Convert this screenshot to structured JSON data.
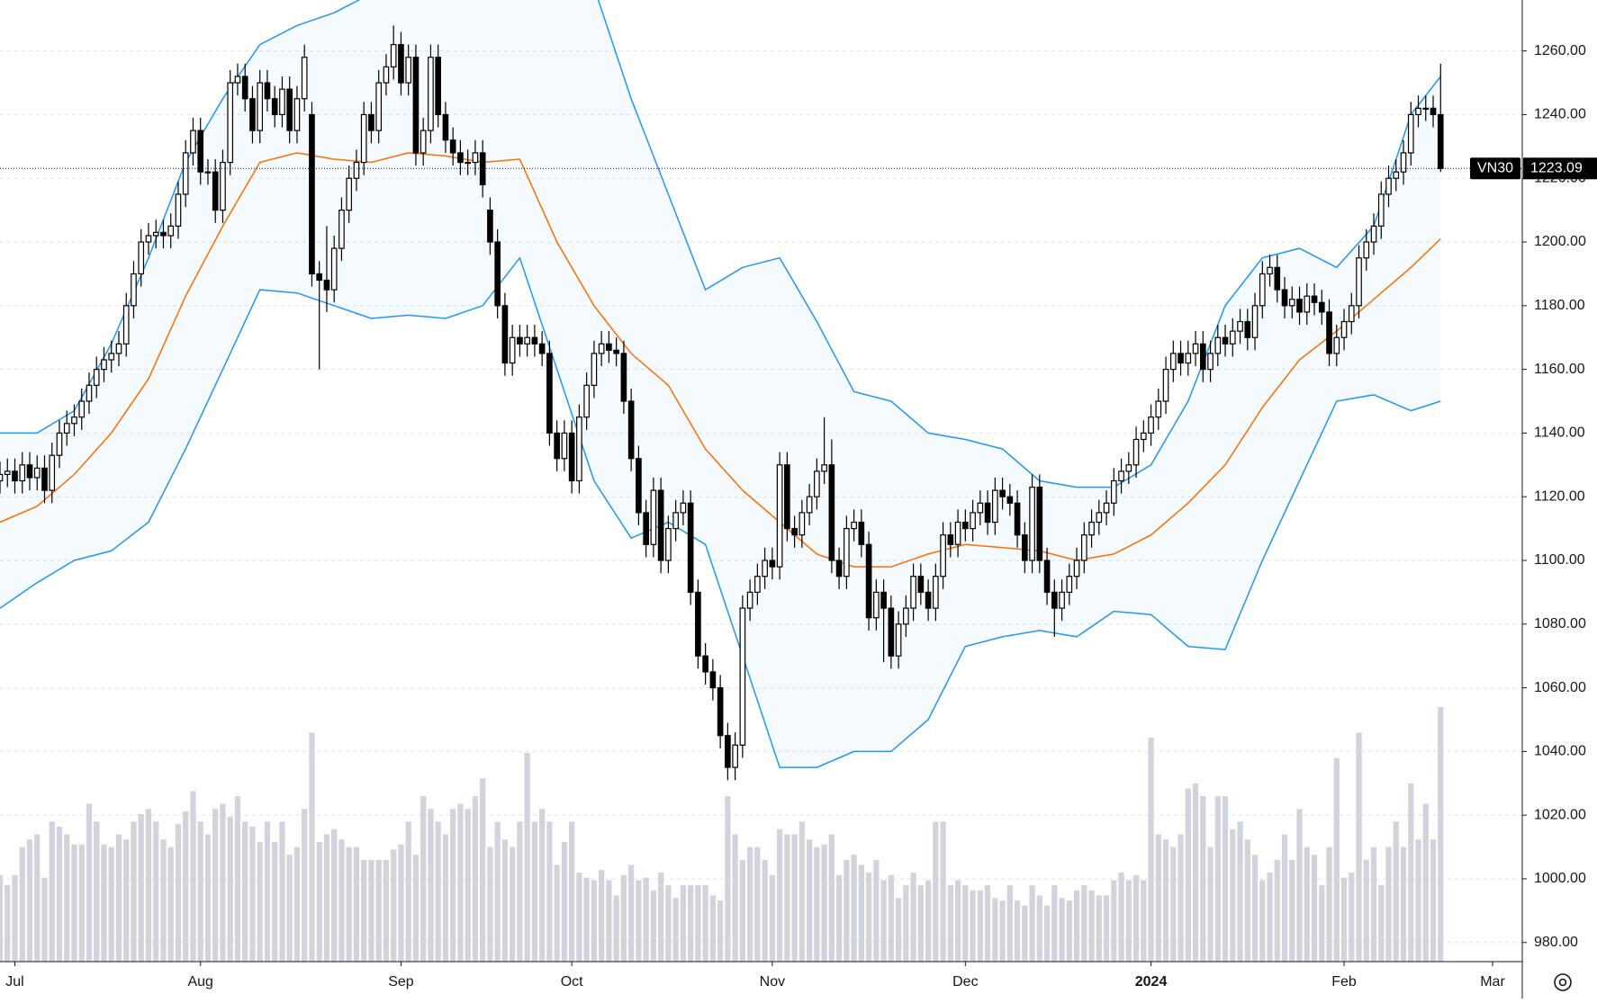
{
  "chart_data": {
    "type": "candlestick",
    "symbol": "VN30",
    "xlim": [
      0,
      205
    ],
    "xticks": [
      {
        "value": 2,
        "label": "Jul"
      },
      {
        "value": 27,
        "label": "Aug"
      },
      {
        "value": 54,
        "label": "Sep"
      },
      {
        "value": 77,
        "label": "Oct"
      },
      {
        "value": 104,
        "label": "Nov"
      },
      {
        "value": 130,
        "label": "Dec"
      },
      {
        "value": 155,
        "label": "2024"
      },
      {
        "value": 181,
        "label": "Feb"
      },
      {
        "value": 201,
        "label": "Mar"
      }
    ],
    "ylim": [
      974,
      1276
    ],
    "yticks": [
      {
        "value": 980,
        "label": "980.00"
      },
      {
        "value": 1000,
        "label": "1000.00"
      },
      {
        "value": 1020,
        "label": "1020.00"
      },
      {
        "value": 1040,
        "label": "1040.00"
      },
      {
        "value": 1060,
        "label": "1060.00"
      },
      {
        "value": 1080,
        "label": "1080.00"
      },
      {
        "value": 1100,
        "label": "1100.00"
      },
      {
        "value": 1120,
        "label": "1120.00"
      },
      {
        "value": 1140,
        "label": "1140.00"
      },
      {
        "value": 1160,
        "label": "1160.00"
      },
      {
        "value": 1180,
        "label": "1180.00"
      },
      {
        "value": 1200,
        "label": "1200.00"
      },
      {
        "value": 1220,
        "label": "1220.00"
      },
      {
        "value": 1240,
        "label": "1240.00"
      },
      {
        "value": 1260,
        "label": "1260.00"
      }
    ],
    "grid": true,
    "up_color": "#ffffff",
    "down_color": "#000000",
    "wick_color": "#000000",
    "open": [
      1125,
      1127,
      1128,
      1125,
      1130,
      1126,
      1129,
      1122,
      1133,
      1140,
      1143,
      1145,
      1150,
      1155,
      1160,
      1163,
      1165,
      1168,
      1180,
      1190,
      1200,
      1202,
      1203,
      1202,
      1205,
      1215,
      1228,
      1235,
      1222,
      1222,
      1210,
      1225,
      1250,
      1252,
      1245,
      1235,
      1250,
      1245,
      1240,
      1248,
      1235,
      1245,
      1240,
      1190,
      1188,
      1185,
      1198,
      1210,
      1220,
      1225,
      1240,
      1235,
      1250,
      1255,
      1262,
      1250,
      1258,
      1228,
      1235,
      1258,
      1240,
      1232,
      1228,
      1225,
      1225,
      1228,
      1210,
      1200,
      1180,
      1162,
      1170,
      1168,
      1170,
      1168,
      1165,
      1140,
      1132,
      1140,
      1125,
      1145,
      1155,
      1165,
      1168,
      1166,
      1165,
      1150,
      1132,
      1115,
      1105,
      1122,
      1100,
      1110,
      1115,
      1118,
      1090,
      1070,
      1065,
      1060,
      1045,
      1035,
      1042,
      1085,
      1090,
      1095,
      1100,
      1098,
      1130,
      1110,
      1108,
      1115,
      1120,
      1128,
      1130,
      1100,
      1095,
      1110,
      1112,
      1105,
      1082,
      1090,
      1085,
      1070,
      1080,
      1085,
      1095,
      1090,
      1085,
      1095,
      1108,
      1105,
      1112,
      1110,
      1115,
      1118,
      1112,
      1122,
      1120,
      1118,
      1108,
      1100,
      1123,
      1100,
      1090,
      1085,
      1090,
      1095,
      1100,
      1108,
      1112,
      1115,
      1118,
      1125,
      1128,
      1130,
      1138,
      1140,
      1145,
      1150,
      1160,
      1165,
      1162,
      1165,
      1168,
      1160,
      1165,
      1170,
      1168,
      1172,
      1175,
      1170,
      1180,
      1190,
      1192,
      1185,
      1180,
      1182,
      1178,
      1183,
      1181,
      1178,
      1165,
      1170,
      1175,
      1180,
      1195,
      1200,
      1205,
      1215,
      1220,
      1222,
      1228,
      1240,
      1242,
      1242,
      1240
    ],
    "high": [
      1131,
      1132,
      1132,
      1134,
      1134,
      1133,
      1133,
      1137,
      1144,
      1147,
      1149,
      1154,
      1159,
      1164,
      1167,
      1169,
      1172,
      1184,
      1194,
      1204,
      1206,
      1207,
      1207,
      1209,
      1219,
      1232,
      1239,
      1239,
      1226,
      1226,
      1229,
      1254,
      1256,
      1256,
      1249,
      1254,
      1254,
      1249,
      1252,
      1252,
      1249,
      1262,
      1244,
      1194,
      1205,
      1202,
      1214,
      1224,
      1229,
      1244,
      1244,
      1254,
      1259,
      1268,
      1266,
      1262,
      1262,
      1239,
      1262,
      1262,
      1244,
      1236,
      1232,
      1229,
      1232,
      1232,
      1214,
      1204,
      1184,
      1174,
      1174,
      1174,
      1174,
      1172,
      1169,
      1144,
      1144,
      1144,
      1149,
      1159,
      1169,
      1172,
      1172,
      1170,
      1169,
      1154,
      1136,
      1119,
      1126,
      1126,
      1114,
      1119,
      1122,
      1122,
      1094,
      1074,
      1069,
      1064,
      1049,
      1046,
      1089,
      1094,
      1099,
      1104,
      1104,
      1134,
      1134,
      1114,
      1119,
      1124,
      1132,
      1145,
      1138,
      1104,
      1114,
      1116,
      1116,
      1109,
      1094,
      1094,
      1089,
      1084,
      1089,
      1099,
      1099,
      1094,
      1099,
      1112,
      1112,
      1116,
      1116,
      1119,
      1122,
      1122,
      1126,
      1126,
      1124,
      1122,
      1112,
      1127,
      1127,
      1104,
      1094,
      1094,
      1099,
      1104,
      1112,
      1116,
      1119,
      1122,
      1129,
      1132,
      1134,
      1142,
      1144,
      1149,
      1154,
      1164,
      1169,
      1169,
      1169,
      1172,
      1172,
      1169,
      1174,
      1174,
      1176,
      1179,
      1179,
      1184,
      1194,
      1196,
      1196,
      1189,
      1186,
      1186,
      1187,
      1187,
      1185,
      1182,
      1174,
      1179,
      1184,
      1199,
      1204,
      1209,
      1219,
      1224,
      1226,
      1232,
      1244,
      1246,
      1246,
      1246,
      1256
    ],
    "low": [
      1121,
      1123,
      1121,
      1121,
      1122,
      1122,
      1118,
      1118,
      1129,
      1136,
      1139,
      1141,
      1146,
      1151,
      1156,
      1159,
      1161,
      1164,
      1176,
      1186,
      1196,
      1198,
      1198,
      1198,
      1201,
      1211,
      1224,
      1218,
      1218,
      1206,
      1206,
      1221,
      1246,
      1241,
      1231,
      1231,
      1241,
      1236,
      1236,
      1231,
      1231,
      1241,
      1186,
      1160,
      1178,
      1181,
      1194,
      1206,
      1216,
      1221,
      1231,
      1231,
      1246,
      1251,
      1246,
      1246,
      1224,
      1224,
      1231,
      1236,
      1228,
      1224,
      1221,
      1221,
      1221,
      1214,
      1196,
      1176,
      1158,
      1158,
      1164,
      1164,
      1164,
      1161,
      1136,
      1128,
      1128,
      1121,
      1121,
      1141,
      1151,
      1161,
      1162,
      1161,
      1146,
      1128,
      1111,
      1101,
      1101,
      1096,
      1096,
      1106,
      1111,
      1086,
      1066,
      1061,
      1056,
      1041,
      1031,
      1031,
      1038,
      1081,
      1086,
      1091,
      1094,
      1094,
      1106,
      1104,
      1104,
      1111,
      1116,
      1124,
      1096,
      1091,
      1091,
      1106,
      1101,
      1078,
      1078,
      1068,
      1066,
      1066,
      1076,
      1081,
      1086,
      1081,
      1081,
      1091,
      1101,
      1101,
      1106,
      1106,
      1111,
      1108,
      1108,
      1116,
      1114,
      1104,
      1096,
      1096,
      1096,
      1086,
      1076,
      1081,
      1086,
      1091,
      1096,
      1104,
      1108,
      1111,
      1114,
      1121,
      1124,
      1126,
      1134,
      1136,
      1141,
      1146,
      1156,
      1158,
      1158,
      1161,
      1156,
      1156,
      1161,
      1164,
      1164,
      1168,
      1166,
      1166,
      1176,
      1186,
      1181,
      1176,
      1176,
      1174,
      1174,
      1177,
      1174,
      1161,
      1161,
      1166,
      1171,
      1176,
      1191,
      1196,
      1201,
      1211,
      1216,
      1218,
      1224,
      1236,
      1238,
      1236,
      1222
    ],
    "close": [
      1127,
      1128,
      1125,
      1130,
      1126,
      1129,
      1122,
      1133,
      1140,
      1143,
      1145,
      1150,
      1155,
      1160,
      1163,
      1165,
      1168,
      1180,
      1190,
      1200,
      1202,
      1203,
      1202,
      1205,
      1215,
      1228,
      1235,
      1222,
      1222,
      1210,
      1225,
      1250,
      1252,
      1245,
      1235,
      1250,
      1245,
      1240,
      1248,
      1235,
      1245,
      1258,
      1190,
      1188,
      1185,
      1198,
      1210,
      1220,
      1225,
      1240,
      1235,
      1250,
      1255,
      1262,
      1250,
      1258,
      1228,
      1235,
      1258,
      1240,
      1232,
      1228,
      1225,
      1225,
      1228,
      1218,
      1200,
      1180,
      1162,
      1170,
      1168,
      1170,
      1168,
      1165,
      1140,
      1132,
      1140,
      1125,
      1145,
      1155,
      1165,
      1168,
      1166,
      1165,
      1150,
      1132,
      1115,
      1105,
      1122,
      1100,
      1110,
      1115,
      1118,
      1090,
      1070,
      1065,
      1060,
      1045,
      1035,
      1042,
      1085,
      1090,
      1095,
      1100,
      1098,
      1130,
      1110,
      1108,
      1115,
      1120,
      1128,
      1130,
      1100,
      1095,
      1110,
      1112,
      1105,
      1082,
      1090,
      1085,
      1070,
      1080,
      1085,
      1095,
      1090,
      1085,
      1095,
      1108,
      1105,
      1112,
      1110,
      1115,
      1118,
      1112,
      1122,
      1120,
      1118,
      1108,
      1100,
      1123,
      1100,
      1090,
      1085,
      1090,
      1095,
      1100,
      1108,
      1112,
      1115,
      1118,
      1125,
      1128,
      1130,
      1138,
      1140,
      1145,
      1150,
      1160,
      1165,
      1162,
      1165,
      1168,
      1160,
      1165,
      1170,
      1168,
      1172,
      1175,
      1170,
      1180,
      1190,
      1192,
      1185,
      1180,
      1182,
      1178,
      1183,
      1181,
      1178,
      1165,
      1170,
      1175,
      1180,
      1195,
      1200,
      1205,
      1215,
      1220,
      1222,
      1228,
      1240,
      1242,
      1242,
      1240,
      1223.09
    ],
    "volume_color": "#d1d4dc",
    "volume_ylim": [
      0,
      100
    ],
    "volume": [
      34,
      30,
      34,
      45,
      48,
      50,
      33,
      55,
      53,
      50,
      46,
      46,
      62,
      55,
      46,
      45,
      50,
      48,
      55,
      58,
      60,
      55,
      48,
      45,
      54,
      59,
      67,
      55,
      50,
      60,
      62,
      57,
      65,
      55,
      53,
      47,
      55,
      47,
      55,
      42,
      45,
      60,
      90,
      47,
      50,
      52,
      48,
      45,
      45,
      40,
      40,
      40,
      40,
      44,
      46,
      55,
      42,
      65,
      60,
      55,
      50,
      60,
      62,
      60,
      65,
      72,
      45,
      55,
      48,
      45,
      55,
      82,
      55,
      60,
      55,
      38,
      47,
      55,
      35,
      33,
      32,
      36,
      32,
      26,
      34,
      38,
      32,
      33,
      28,
      35,
      30,
      25,
      30,
      30,
      30,
      30,
      26,
      24,
      65,
      50,
      40,
      45,
      45,
      40,
      34,
      52,
      50,
      50,
      55,
      48,
      45,
      46,
      50,
      34,
      40,
      42,
      38,
      35,
      40,
      32,
      34,
      25,
      30,
      35,
      30,
      32,
      55,
      55,
      30,
      32,
      30,
      28,
      28,
      30,
      25,
      24,
      30,
      24,
      22,
      30,
      26,
      22,
      30,
      25,
      24,
      28,
      30,
      28,
      26,
      26,
      32,
      35,
      32,
      34,
      32,
      88,
      50,
      48,
      45,
      50,
      68,
      70,
      65,
      45,
      65,
      65,
      52,
      55,
      48,
      42,
      32,
      35,
      40,
      50,
      40,
      60,
      45,
      42,
      30,
      45,
      80,
      33,
      35,
      90,
      40,
      45,
      30,
      45,
      55,
      45,
      70,
      48,
      62,
      48,
      100
    ],
    "bands": {
      "band_color": "#2196f3",
      "middle_color": "#ff6d00",
      "x": [
        0,
        5,
        10,
        15,
        20,
        25,
        30,
        35,
        40,
        45,
        50,
        55,
        60,
        65,
        70,
        75,
        80,
        85,
        90,
        95,
        100,
        105,
        110,
        115,
        120,
        125,
        130,
        135,
        140,
        145,
        150,
        155,
        160,
        165,
        170,
        175,
        180,
        185,
        190,
        194
      ],
      "upper": [
        1140,
        1140,
        1147,
        1168,
        1195,
        1225,
        1245,
        1262,
        1268,
        1272,
        1278,
        1282,
        1280,
        1290,
        1278,
        1285,
        1280,
        1245,
        1215,
        1185,
        1192,
        1195,
        1175,
        1153,
        1150,
        1140,
        1138,
        1135,
        1125,
        1123,
        1123,
        1130,
        1150,
        1180,
        1195,
        1198,
        1192,
        1205,
        1240,
        1252
      ],
      "middle": [
        1112,
        1117,
        1127,
        1140,
        1157,
        1183,
        1205,
        1225,
        1228,
        1226,
        1225,
        1228,
        1227,
        1225,
        1226,
        1200,
        1180,
        1165,
        1155,
        1135,
        1122,
        1112,
        1102,
        1098,
        1098,
        1102,
        1105,
        1104,
        1103,
        1100,
        1102,
        1108,
        1118,
        1130,
        1148,
        1163,
        1172,
        1182,
        1192,
        1201
      ],
      "lower": [
        1085,
        1093,
        1100,
        1103,
        1112,
        1135,
        1160,
        1185,
        1184,
        1180,
        1176,
        1177,
        1176,
        1180,
        1195,
        1160,
        1125,
        1107,
        1112,
        1105,
        1070,
        1035,
        1035,
        1040,
        1040,
        1050,
        1073,
        1076,
        1078,
        1076,
        1084,
        1083,
        1073,
        1072,
        1100,
        1125,
        1150,
        1152,
        1147,
        1150
      ]
    }
  }
}
